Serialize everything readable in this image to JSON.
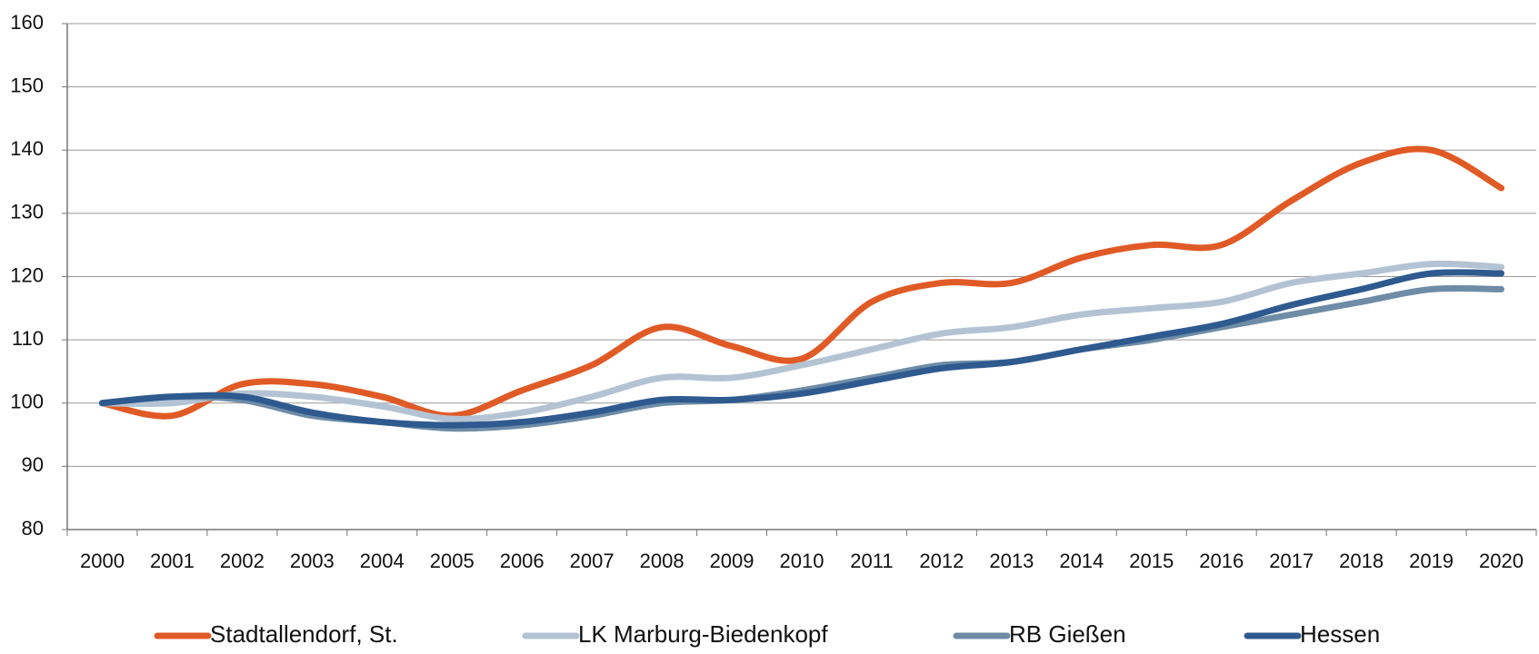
{
  "chart_data": {
    "type": "line",
    "categories": [
      "2000",
      "2001",
      "2002",
      "2003",
      "2004",
      "2005",
      "2006",
      "2007",
      "2008",
      "2009",
      "2010",
      "2011",
      "2012",
      "2013",
      "2014",
      "2015",
      "2016",
      "2017",
      "2018",
      "2019",
      "2020"
    ],
    "series": [
      {
        "name": "Stadtallendorf, St.",
        "color": "#e05a26",
        "values": [
          100,
          98,
          103,
          103,
          101,
          98,
          102,
          106,
          112,
          109,
          107,
          116,
          119,
          119,
          123,
          125,
          125,
          132,
          138,
          140,
          134
        ]
      },
      {
        "name": "LK Marburg-Biedenkopf",
        "color": "#b4c3d3",
        "values": [
          100,
          100,
          101.5,
          101,
          99.5,
          97.5,
          98.5,
          101,
          104,
          104,
          106,
          108.5,
          111,
          112,
          114,
          115,
          116,
          119,
          120.5,
          122,
          121.5
        ]
      },
      {
        "name": "RB Gießen",
        "color": "#6e8ca6",
        "values": [
          100,
          101,
          100.5,
          98,
          97,
          96,
          96.5,
          98,
          100,
          100.5,
          102,
          104,
          106,
          106.5,
          108.5,
          110,
          112,
          114,
          116,
          118,
          118
        ]
      },
      {
        "name": "Hessen",
        "color": "#2f5a8f",
        "values": [
          100,
          101,
          101,
          98.5,
          97,
          96.5,
          97,
          98.5,
          100.5,
          100.5,
          101.5,
          103.5,
          105.5,
          106.5,
          108.5,
          110.5,
          112.5,
          115.5,
          118,
          120.5,
          120.5
        ]
      }
    ],
    "ylim": [
      80,
      160
    ],
    "yticks": [
      80,
      90,
      100,
      110,
      120,
      130,
      140,
      150,
      160
    ],
    "grid": true
  }
}
